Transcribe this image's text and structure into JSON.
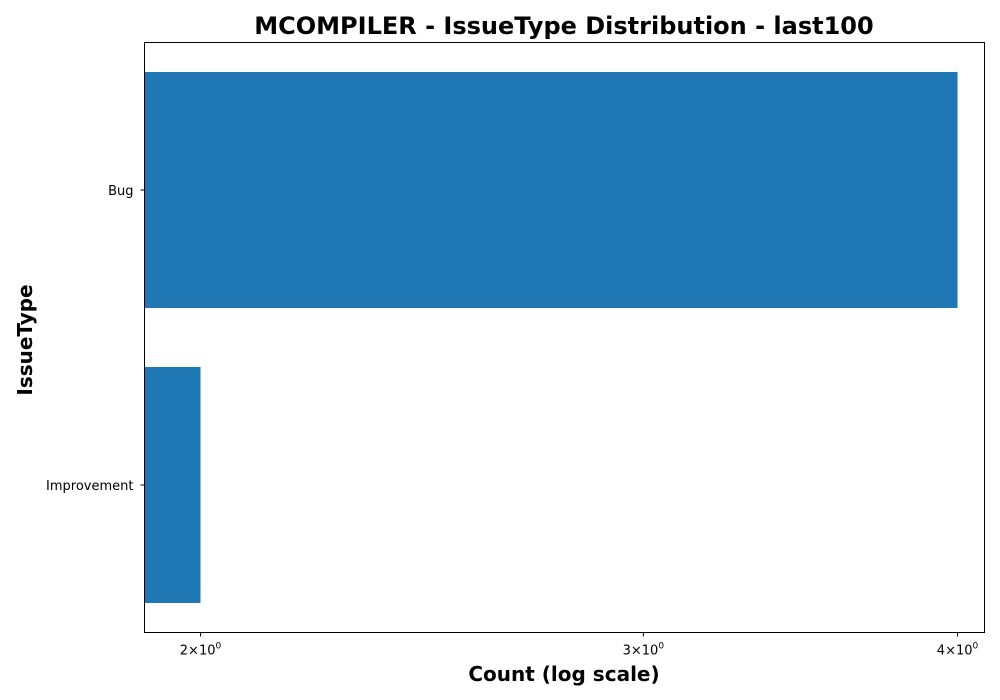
{
  "chart_data": {
    "type": "bar",
    "orientation": "horizontal",
    "title": "MCOMPILER - IssueType Distribution - last100",
    "xlabel": "Count (log scale)",
    "ylabel": "IssueType",
    "x_scale": "log",
    "xlim": [
      1.9,
      4.1
    ],
    "categories": [
      "Bug",
      "Improvement"
    ],
    "values": [
      4,
      2
    ],
    "bar_color": "#1f77b4",
    "grid": false,
    "x_ticks": [
      {
        "value": 2,
        "base": "2",
        "mantissa": "10",
        "exponent": "0"
      },
      {
        "value": 3,
        "base": "3",
        "mantissa": "10",
        "exponent": "0"
      },
      {
        "value": 4,
        "base": "4",
        "mantissa": "10",
        "exponent": "0"
      }
    ]
  }
}
